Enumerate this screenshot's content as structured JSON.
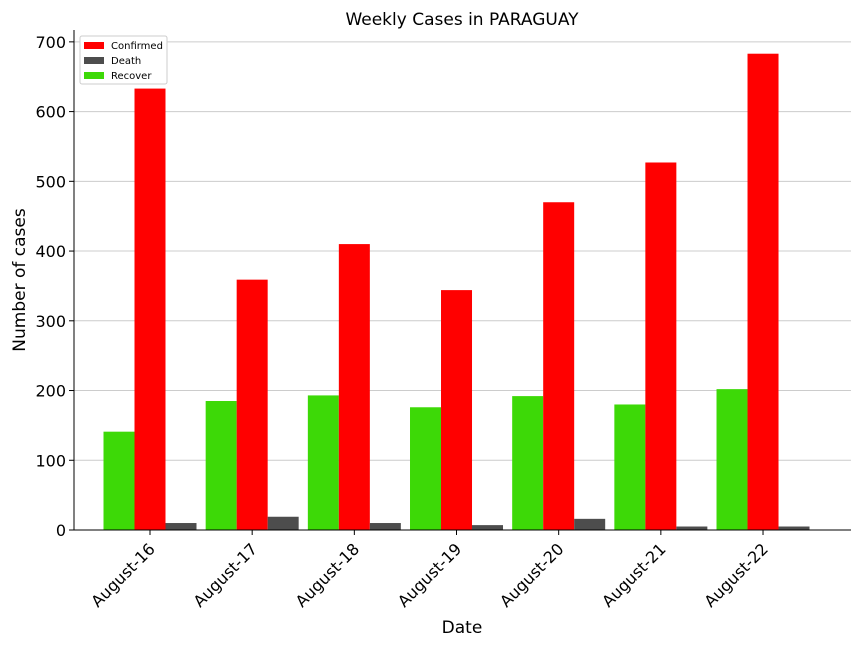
{
  "chart_data": {
    "type": "bar",
    "title": "Weekly Cases in PARAGUAY",
    "xlabel": "Date",
    "ylabel": "Number of cases",
    "categories": [
      "August-16",
      "August-17",
      "August-18",
      "August-19",
      "August-20",
      "August-21",
      "August-22"
    ],
    "series": [
      {
        "name": "Recover",
        "color": "#3dd907",
        "values": [
          141,
          185,
          193,
          176,
          192,
          180,
          202
        ]
      },
      {
        "name": "Confirmed",
        "color": "#ff0000",
        "values": [
          633,
          359,
          410,
          344,
          470,
          527,
          683
        ]
      },
      {
        "name": "Death",
        "color": "#4d4d4d",
        "values": [
          10,
          19,
          10,
          7,
          16,
          5,
          5
        ]
      }
    ],
    "legend_order": [
      "Confirmed",
      "Death",
      "Recover"
    ],
    "yticks": [
      0,
      100,
      200,
      300,
      400,
      500,
      600,
      700
    ],
    "ylim": [
      0,
      717
    ],
    "grid": "horizontal",
    "legend_position": "top-left"
  }
}
